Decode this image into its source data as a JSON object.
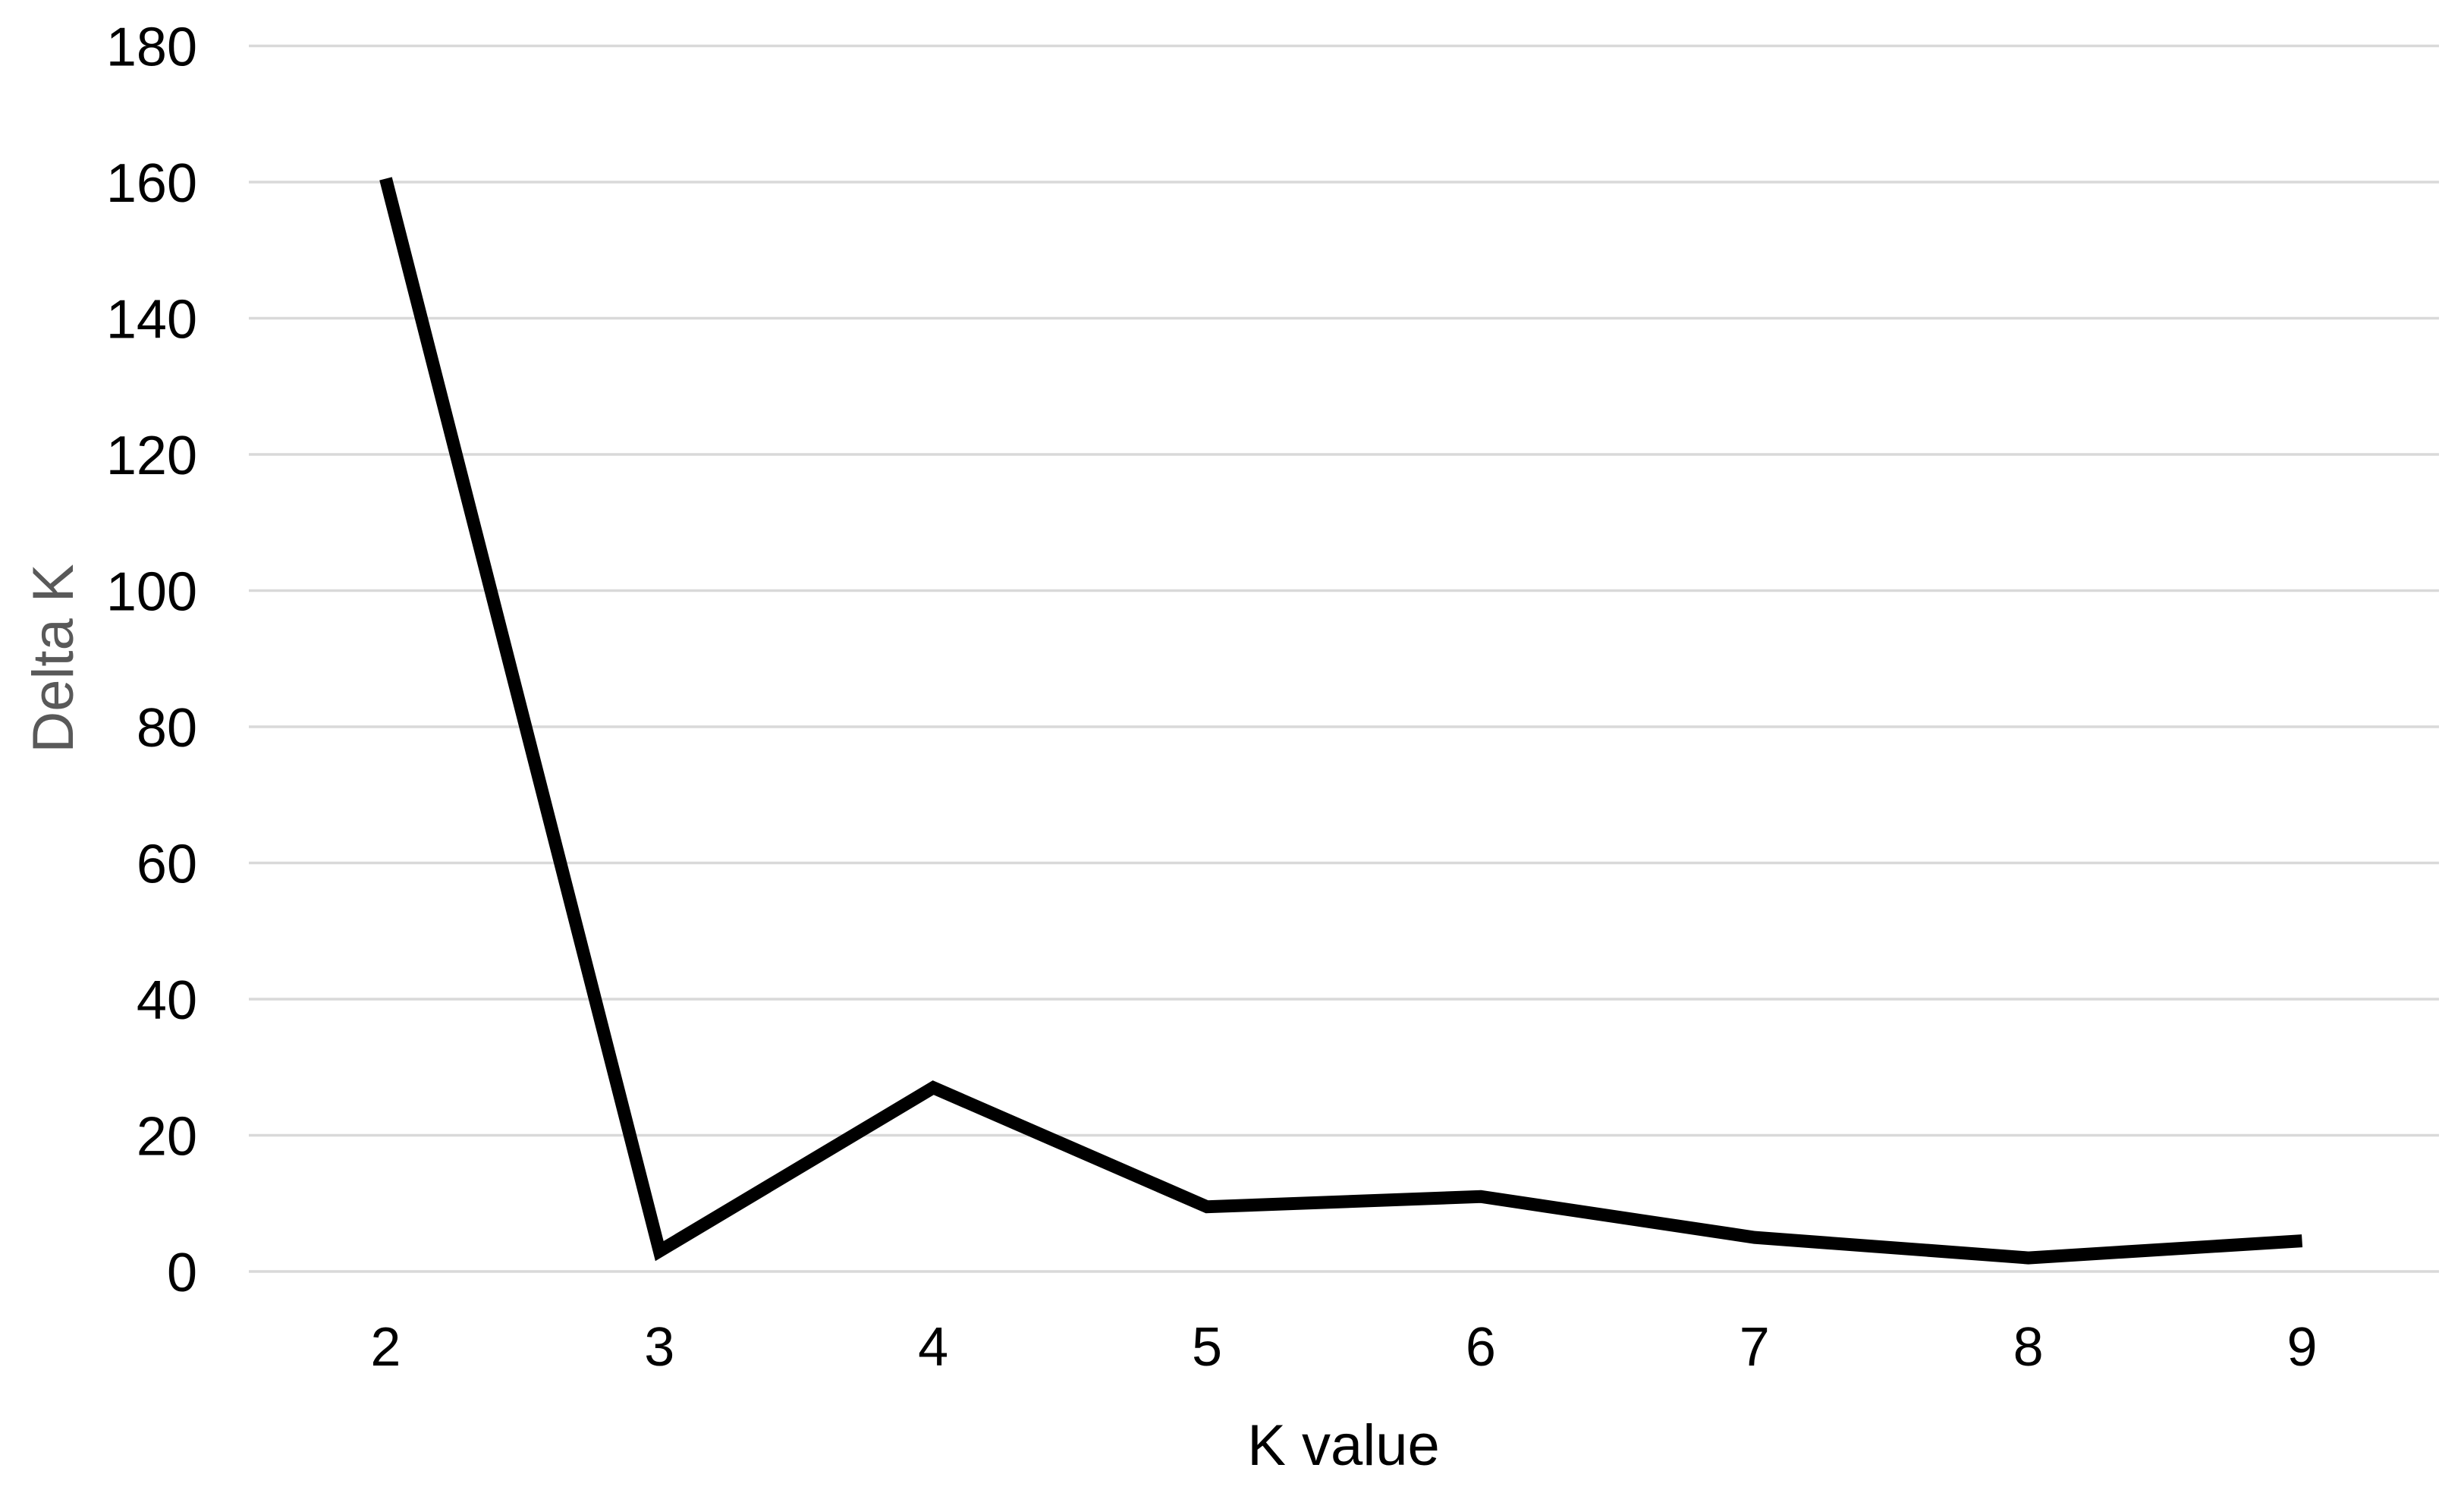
{
  "chart_data": {
    "type": "line",
    "categories": [
      "2",
      "3",
      "4",
      "5",
      "6",
      "7",
      "8",
      "9"
    ],
    "values": [
      160.5,
      3,
      27,
      9.5,
      11,
      5,
      2,
      4.5
    ],
    "xlabel": "K value",
    "ylabel": "Delta K",
    "ylim": [
      0,
      180
    ],
    "y_ticks": [
      0,
      20,
      40,
      60,
      80,
      100,
      120,
      140,
      160,
      180
    ],
    "grid": "horizontal-only",
    "legend": "none",
    "background_color": "#ffffff",
    "line_color": "#000000",
    "line_width": 17,
    "gridline_color": "#d9d9d9",
    "gridline_width": 3.5,
    "tick_color": "#000000",
    "xlabel_color": "#000000",
    "ylabel_color": "#595959"
  }
}
